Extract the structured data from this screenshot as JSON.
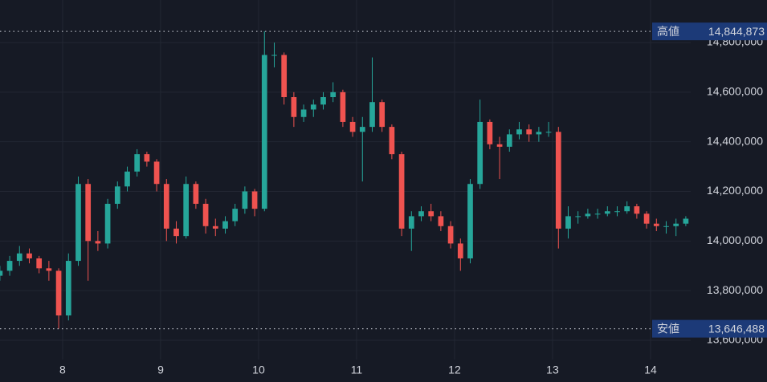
{
  "chart_data": {
    "type": "candlestick",
    "x": [
      7.36,
      7.46,
      7.56,
      7.66,
      7.76,
      7.86,
      7.96,
      8.06,
      8.16,
      8.26,
      8.36,
      8.46,
      8.56,
      8.66,
      8.76,
      8.86,
      8.96,
      9.06,
      9.16,
      9.26,
      9.36,
      9.46,
      9.56,
      9.66,
      9.76,
      9.86,
      9.96,
      10.06,
      10.16,
      10.26,
      10.36,
      10.46,
      10.56,
      10.66,
      10.76,
      10.86,
      10.96,
      11.06,
      11.16,
      11.26,
      11.36,
      11.46,
      11.56,
      11.66,
      11.76,
      11.86,
      11.96,
      12.06,
      12.16,
      12.26,
      12.36,
      12.46,
      12.56,
      12.66,
      12.76,
      12.86,
      12.96,
      13.06,
      13.16,
      13.26,
      13.36,
      13.46,
      13.56,
      13.66,
      13.76,
      13.86,
      13.96,
      14.06,
      14.16,
      14.26,
      14.36
    ],
    "open": [
      13860000,
      13880000,
      13920000,
      13950000,
      13930000,
      13890000,
      13880000,
      13700000,
      13920000,
      14230000,
      14000000,
      13990000,
      14150000,
      14220000,
      14280000,
      14350000,
      14320000,
      14230000,
      14050000,
      14020000,
      14230000,
      14150000,
      14060000,
      14050000,
      14080000,
      14130000,
      14200000,
      14130000,
      14750000,
      14750000,
      14580000,
      14500000,
      14530000,
      14550000,
      14580000,
      14600000,
      14480000,
      14440000,
      14460000,
      14560000,
      14460000,
      14350000,
      14050000,
      14100000,
      14120000,
      14100000,
      14060000,
      13990000,
      13930000,
      14230000,
      14480000,
      14390000,
      14380000,
      14430000,
      14450000,
      14430000,
      14440000,
      14440000,
      14050000,
      14100000,
      14100000,
      14110000,
      14110000,
      14120000,
      14120000,
      14140000,
      14110000,
      14070000,
      14060000,
      14060000,
      14070000
    ],
    "high": [
      13900000,
      13940000,
      13980000,
      13970000,
      13940000,
      13920000,
      13890000,
      13950000,
      14260000,
      14250000,
      14040000,
      14170000,
      14240000,
      14300000,
      14370000,
      14360000,
      14330000,
      14250000,
      14080000,
      14260000,
      14240000,
      14170000,
      14090000,
      14100000,
      14150000,
      14220000,
      14210000,
      14844873,
      14800000,
      14760000,
      14600000,
      14550000,
      14570000,
      14600000,
      14640000,
      14610000,
      14500000,
      14500000,
      14740000,
      14570000,
      14470000,
      14360000,
      14120000,
      14140000,
      14150000,
      14120000,
      14080000,
      14010000,
      14250000,
      14570000,
      14490000,
      14420000,
      14450000,
      14480000,
      14470000,
      14460000,
      14480000,
      14460000,
      14140000,
      14120000,
      14130000,
      14130000,
      14140000,
      14140000,
      14160000,
      14150000,
      14120000,
      14090000,
      14080000,
      14090000,
      14100000
    ],
    "low": [
      13840000,
      13860000,
      13900000,
      13910000,
      13870000,
      13840000,
      13646488,
      13680000,
      13900000,
      13840000,
      13960000,
      13970000,
      14130000,
      14200000,
      14260000,
      14300000,
      14200000,
      14000000,
      13990000,
      14010000,
      14130000,
      14030000,
      14020000,
      14030000,
      14060000,
      14110000,
      14100000,
      14120000,
      14700000,
      14550000,
      14460000,
      14480000,
      14500000,
      14530000,
      14560000,
      14460000,
      14420000,
      14240000,
      14440000,
      14440000,
      14330000,
      14020000,
      13960000,
      14080000,
      14080000,
      14040000,
      13970000,
      13880000,
      13910000,
      14210000,
      14370000,
      14250000,
      14360000,
      14410000,
      14400000,
      14400000,
      14420000,
      13970000,
      14010000,
      14070000,
      14090000,
      14090000,
      14100000,
      14100000,
      14110000,
      14090000,
      14050000,
      14040000,
      14030000,
      14020000,
      14060000
    ],
    "close": [
      13880000,
      13920000,
      13950000,
      13930000,
      13890000,
      13880000,
      13700000,
      13920000,
      14230000,
      14000000,
      13990000,
      14150000,
      14220000,
      14280000,
      14350000,
      14320000,
      14230000,
      14050000,
      14020000,
      14230000,
      14150000,
      14060000,
      14050000,
      14080000,
      14130000,
      14200000,
      14130000,
      14750000,
      14750000,
      14580000,
      14500000,
      14530000,
      14550000,
      14580000,
      14600000,
      14480000,
      14440000,
      14460000,
      14560000,
      14460000,
      14350000,
      14050000,
      14100000,
      14120000,
      14100000,
      14060000,
      13990000,
      13930000,
      14230000,
      14480000,
      14390000,
      14380000,
      14430000,
      14450000,
      14430000,
      14440000,
      14440000,
      14050000,
      14100000,
      14100000,
      14110000,
      14110000,
      14120000,
      14120000,
      14140000,
      14110000,
      14070000,
      14060000,
      14060000,
      14070000,
      14090000
    ],
    "up_color": "#26a69a",
    "down_color": "#ef5350",
    "xlim": [
      7.361,
      14.41
    ],
    "xticks": [
      8,
      9,
      10,
      11,
      12,
      13,
      14
    ],
    "ylim": [
      13522300,
      14971500
    ],
    "yticks": [
      {
        "value": 13600000,
        "label": "13,600,000"
      },
      {
        "value": 13800000,
        "label": "13,800,000"
      },
      {
        "value": 14000000,
        "label": "14,000,000"
      },
      {
        "value": 14200000,
        "label": "14,200,000"
      },
      {
        "value": 14400000,
        "label": "14,400,000"
      },
      {
        "value": 14600000,
        "label": "14,600,000"
      },
      {
        "value": 14800000,
        "label": "14,800,000"
      }
    ],
    "grid": true,
    "markers": [
      {
        "name": "高値",
        "value": 14844873,
        "label": "14,844,873"
      },
      {
        "name": "安値",
        "value": 13646488,
        "label": "13,646,488"
      }
    ]
  }
}
